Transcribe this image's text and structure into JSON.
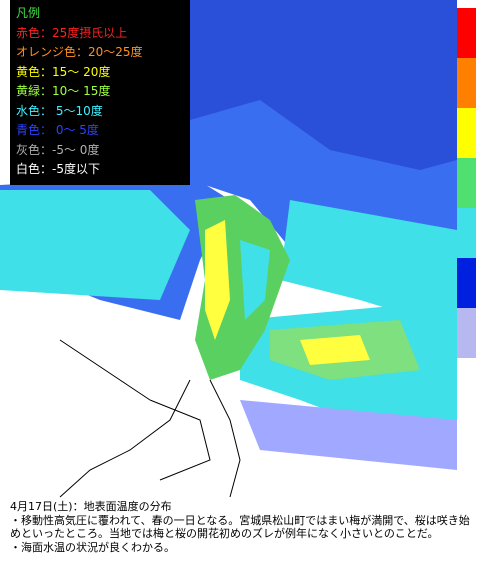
{
  "legend": {
    "title": "凡例",
    "items": [
      "赤色：25度摂氏以上",
      "オレンジ色：20～25度",
      "黄色：15～ 20度",
      "黄緑：10～ 15度",
      "水色： 5～10度",
      "青色： 0～ 5度",
      "灰色：-5～ 0度",
      "白色：-5度以下"
    ]
  },
  "caption": {
    "title": "4月17日(土)：地表面温度の分布",
    "notes": [
      "・移動性高気圧に覆われて、春の一日となる。宮城県松山町ではまい梅が満開で、桜は咲き始めといったところ。当地では梅と桜の開花初めのズレが例年になく小さいとのことだ。",
      "・海面水温の状況が良くわかる。"
    ]
  }
}
